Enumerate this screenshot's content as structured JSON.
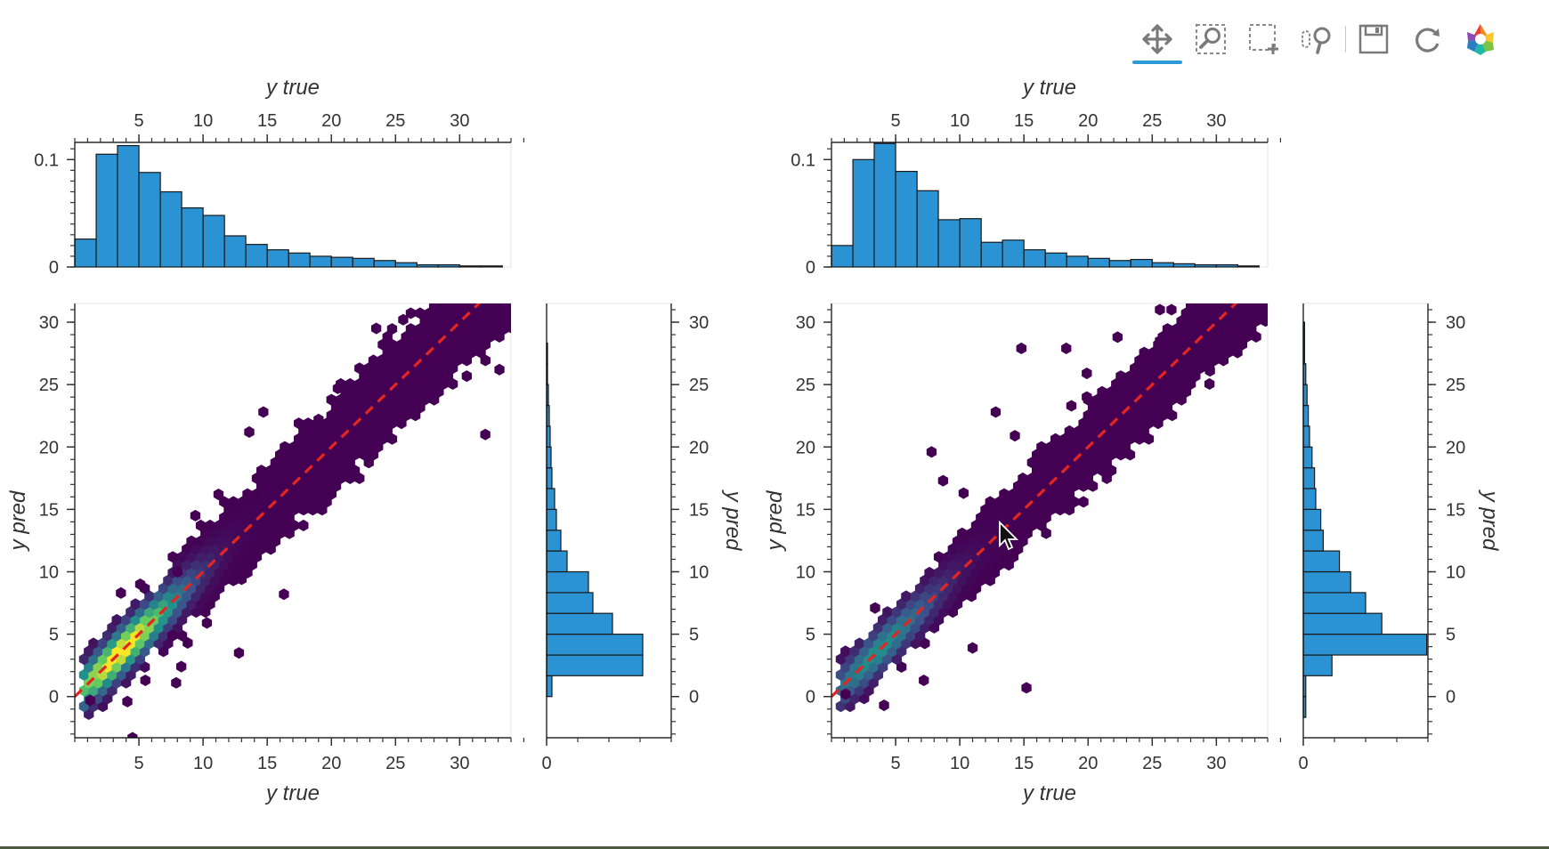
{
  "toolbar": {
    "tools": [
      {
        "name": "pan",
        "icon": "pan-icon",
        "active": true
      },
      {
        "name": "box-zoom",
        "icon": "box-zoom-icon",
        "active": false
      },
      {
        "name": "box-select",
        "icon": "box-select-icon",
        "active": false
      },
      {
        "name": "wheel-zoom",
        "icon": "wheel-zoom-icon",
        "active": false
      },
      {
        "name": "save",
        "icon": "save-icon",
        "active": false
      },
      {
        "name": "reset",
        "icon": "reset-icon",
        "active": false
      },
      {
        "name": "bokeh-logo",
        "icon": "bokeh-logo-icon",
        "active": false
      }
    ]
  },
  "colors": {
    "hist_fill": "#2b93d4",
    "hist_stroke": "#1a1a1a",
    "diag_line": "#e5251f",
    "accent": "#2b9ad6",
    "viridis": [
      "#440154",
      "#3b528b",
      "#21918c",
      "#5ec962",
      "#fde725"
    ]
  },
  "chart_data": [
    {
      "type": "hexbin",
      "id": "left-hexbin",
      "xlabel": "y true",
      "ylabel": "y pred",
      "xlim": [
        0,
        34
      ],
      "ylim": [
        -3.3,
        31.5
      ],
      "xticks": [
        5,
        10,
        15,
        20,
        25,
        30
      ],
      "yticks": [
        0,
        5,
        10,
        15,
        20,
        25,
        30
      ],
      "diagonal": {
        "from": [
          0,
          0
        ],
        "to": [
          34,
          34
        ],
        "style": "dashed"
      },
      "hex_radius": 0.42,
      "spread": 1.55,
      "outliers": [
        [
          28,
          28.2
        ],
        [
          23.5,
          29.5
        ],
        [
          24,
          27
        ],
        [
          25.6,
          30.2
        ],
        [
          26.5,
          28.5
        ],
        [
          14.7,
          22.8
        ],
        [
          13.6,
          21.2
        ],
        [
          19,
          22.2
        ],
        [
          32,
          21
        ],
        [
          33,
          30.8
        ],
        [
          33.1,
          26.2
        ],
        [
          20.5,
          24.7
        ],
        [
          8,
          10
        ],
        [
          16.3,
          8.2
        ],
        [
          13,
          9.4
        ],
        [
          5.5,
          1.3
        ],
        [
          7.9,
          1.1
        ],
        [
          4.1,
          -0.4
        ],
        [
          1.2,
          -0.3
        ],
        [
          8.8,
          4.3
        ],
        [
          12.8,
          3.5
        ],
        [
          4.5,
          -3.3
        ],
        [
          3.6,
          8.3
        ],
        [
          7.6,
          4.9
        ],
        [
          19.7,
          17.8
        ],
        [
          11.2,
          16.2
        ],
        [
          10.3,
          5.9
        ],
        [
          9.4,
          14.5
        ],
        [
          8.3,
          2.4
        ],
        [
          5.1,
          9
        ]
      ],
      "x_axis_histogram": {
        "bin_edges": [
          0,
          1.67,
          3.33,
          5,
          6.67,
          8.33,
          10,
          11.67,
          13.33,
          15,
          16.67,
          18.33,
          20,
          21.67,
          23.33,
          25,
          26.67,
          28.33,
          30,
          31.67,
          33.33
        ],
        "values": [
          0.026,
          0.105,
          0.113,
          0.088,
          0.07,
          0.055,
          0.048,
          0.029,
          0.021,
          0.016,
          0.013,
          0.01,
          0.009,
          0.008,
          0.006,
          0.004,
          0.002,
          0.002,
          0.001,
          0.001
        ],
        "yticks": [
          0,
          0.1
        ],
        "ylim": [
          0,
          0.116
        ]
      },
      "y_axis_histogram": {
        "bin_edges": [
          -3.3,
          -1.67,
          0,
          1.67,
          3.33,
          5,
          6.67,
          8.33,
          10,
          11.67,
          13.33,
          15,
          16.67,
          18.33,
          20,
          21.67,
          23.33,
          25,
          26.67,
          28.33,
          30,
          31.5
        ],
        "values": [
          0,
          0,
          0.006,
          0.108,
          0.108,
          0.074,
          0.052,
          0.047,
          0.023,
          0.016,
          0.011,
          0.009,
          0.006,
          0.005,
          0.004,
          0.003,
          0.002,
          0.001,
          0.001,
          0,
          0
        ],
        "xticks": [
          0
        ],
        "xlim": [
          0,
          0.14
        ]
      }
    },
    {
      "type": "hexbin",
      "id": "right-hexbin",
      "xlabel": "y true",
      "ylabel": "y pred",
      "xlim": [
        0,
        34
      ],
      "ylim": [
        -3.3,
        31.5
      ],
      "xticks": [
        5,
        10,
        15,
        20,
        25,
        30
      ],
      "yticks": [
        0,
        5,
        10,
        15,
        20,
        25,
        30
      ],
      "diagonal": {
        "from": [
          0,
          0
        ],
        "to": [
          34,
          34
        ],
        "style": "dashed"
      },
      "hex_radius": 0.42,
      "spread": 1.35,
      "outliers": [
        [
          15.2,
          0.7
        ],
        [
          4.1,
          -0.7
        ],
        [
          7.2,
          1.3
        ],
        [
          1.1,
          0.2
        ],
        [
          11,
          3.9
        ],
        [
          7.8,
          19.6
        ],
        [
          12.8,
          22.8
        ],
        [
          14.8,
          27.9
        ],
        [
          18.3,
          27.9
        ],
        [
          19.9,
          25.9
        ],
        [
          22.3,
          28.8
        ],
        [
          26.5,
          31
        ],
        [
          29.5,
          26.1
        ],
        [
          30.8,
          28.8
        ],
        [
          25.6,
          28.5
        ],
        [
          32.5,
          31.5
        ],
        [
          31.3,
          29.8
        ],
        [
          10.3,
          16.3
        ],
        [
          8.7,
          17.3
        ],
        [
          14.3,
          20.9
        ],
        [
          21.5,
          20.2
        ],
        [
          19.9,
          24
        ],
        [
          29.8,
          28.3
        ],
        [
          18.7,
          23.3
        ],
        [
          3.4,
          7.1
        ],
        [
          25.6,
          31
        ]
      ],
      "x_axis_histogram": {
        "bin_edges": [
          0,
          1.67,
          3.33,
          5,
          6.67,
          8.33,
          10,
          11.67,
          13.33,
          15,
          16.67,
          18.33,
          20,
          21.67,
          23.33,
          25,
          26.67,
          28.33,
          30,
          31.67,
          33.33
        ],
        "values": [
          0.02,
          0.1,
          0.115,
          0.089,
          0.071,
          0.044,
          0.045,
          0.023,
          0.025,
          0.016,
          0.013,
          0.01,
          0.008,
          0.006,
          0.007,
          0.004,
          0.003,
          0.002,
          0.002,
          0.001
        ],
        "yticks": [
          0,
          0.1
        ],
        "ylim": [
          0,
          0.116
        ]
      },
      "y_axis_histogram": {
        "bin_edges": [
          -3.3,
          -1.67,
          0,
          1.67,
          3.33,
          5,
          6.67,
          8.33,
          10,
          11.67,
          13.33,
          15,
          16.67,
          18.33,
          20,
          21.67,
          23.33,
          25,
          26.67,
          28.33,
          30,
          31.5
        ],
        "values": [
          0,
          0.002,
          0.002,
          0.023,
          0.099,
          0.063,
          0.05,
          0.038,
          0.029,
          0.016,
          0.014,
          0.01,
          0.009,
          0.007,
          0.005,
          0.004,
          0.003,
          0.002,
          0.001,
          0.001,
          0
        ],
        "xticks": [
          0
        ],
        "xlim": [
          0,
          0.1
        ]
      }
    }
  ]
}
